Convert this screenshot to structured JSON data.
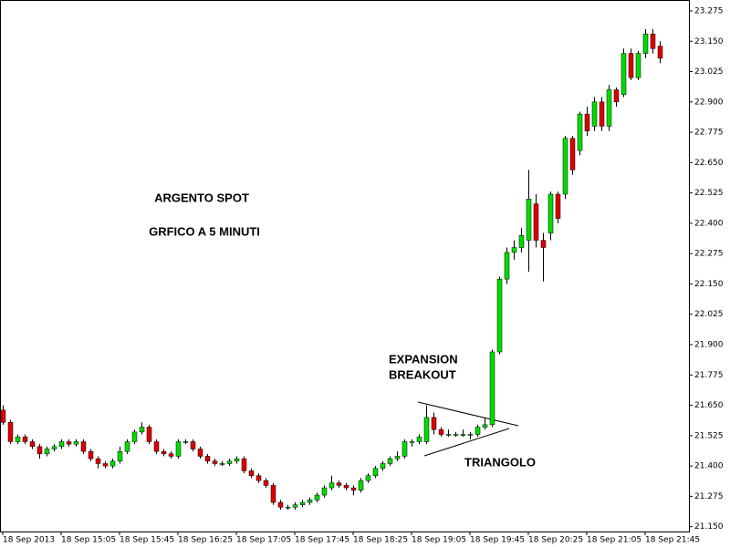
{
  "chart_data": {
    "type": "candlestick",
    "annotations": [
      "ARGENTO SPOT",
      "GRFICO A 5 MINUTI",
      "EXPANSION",
      "BREAKOUT",
      "TRIANGOLO"
    ],
    "categories": [
      "18 Sep 2013",
      null,
      null,
      null,
      null,
      null,
      null,
      null,
      "18 Sep 15:05",
      null,
      null,
      null,
      null,
      null,
      null,
      null,
      "18 Sep 15:45",
      null,
      null,
      null,
      null,
      null,
      null,
      null,
      "18 Sep 16:25",
      null,
      null,
      null,
      null,
      null,
      null,
      null,
      "18 Sep 17:05",
      null,
      null,
      null,
      null,
      null,
      null,
      null,
      "18 Sep 17:45",
      null,
      null,
      null,
      null,
      null,
      null,
      null,
      "18 Sep 18:25",
      null,
      null,
      null,
      null,
      null,
      null,
      null,
      "18 Sep 19:05",
      null,
      null,
      null,
      null,
      null,
      null,
      null,
      "18 Sep 19:45",
      null,
      null,
      null,
      null,
      null,
      null,
      null,
      "18 Sep 20:25",
      null,
      null,
      null,
      null,
      null,
      null,
      null,
      "18 Sep 21:05",
      null,
      null,
      null,
      null,
      null,
      null,
      null,
      "18 Sep 21:45",
      null,
      null
    ],
    "open": [
      21.63,
      21.58,
      21.5,
      21.52,
      21.5,
      21.48,
      21.45,
      21.47,
      21.48,
      21.5,
      21.49,
      21.5,
      21.46,
      21.43,
      21.41,
      21.4,
      21.42,
      21.46,
      21.5,
      21.54,
      21.56,
      21.5,
      21.46,
      21.45,
      21.44,
      21.5,
      21.5,
      21.47,
      21.44,
      21.42,
      21.41,
      21.41,
      21.42,
      21.43,
      21.38,
      21.36,
      21.34,
      21.32,
      21.25,
      21.23,
      21.23,
      21.24,
      21.25,
      21.26,
      21.28,
      21.31,
      21.33,
      21.32,
      21.31,
      21.3,
      21.34,
      21.36,
      21.39,
      21.41,
      21.43,
      21.44,
      21.5,
      21.5,
      21.5,
      21.6,
      21.55,
      21.53,
      21.53,
      21.53,
      21.53,
      21.53,
      21.56,
      21.57,
      21.87,
      22.17,
      22.28,
      22.3,
      22.33,
      22.48,
      22.33,
      22.36,
      22.52,
      22.52,
      22.75,
      22.7,
      22.85,
      22.8,
      22.9,
      22.8,
      22.95,
      22.93,
      23.1,
      23.0,
      23.1,
      23.18,
      23.13
    ],
    "high": [
      21.65,
      21.59,
      21.53,
      21.53,
      21.51,
      21.49,
      21.48,
      21.49,
      21.51,
      21.51,
      21.51,
      21.51,
      21.47,
      21.44,
      21.42,
      21.43,
      21.48,
      21.51,
      21.55,
      21.58,
      21.57,
      21.51,
      21.47,
      21.46,
      21.51,
      21.51,
      21.51,
      21.48,
      21.45,
      21.43,
      21.42,
      21.43,
      21.44,
      21.44,
      21.39,
      21.37,
      21.35,
      21.33,
      21.26,
      21.24,
      21.25,
      21.26,
      21.27,
      21.29,
      21.32,
      21.36,
      21.34,
      21.33,
      21.32,
      21.35,
      21.37,
      21.4,
      21.42,
      21.44,
      21.46,
      21.51,
      21.51,
      21.53,
      21.65,
      21.62,
      21.56,
      21.55,
      21.54,
      21.55,
      21.54,
      21.57,
      21.6,
      21.88,
      22.18,
      22.3,
      22.33,
      22.38,
      22.62,
      22.52,
      22.36,
      22.53,
      22.53,
      22.76,
      22.76,
      22.86,
      22.88,
      22.92,
      22.92,
      22.97,
      22.96,
      23.12,
      23.12,
      23.11,
      23.2,
      23.2,
      23.15
    ],
    "low": [
      21.57,
      21.49,
      21.49,
      21.49,
      21.47,
      21.43,
      21.44,
      21.46,
      21.47,
      21.48,
      21.48,
      21.45,
      21.42,
      21.39,
      21.39,
      21.39,
      21.41,
      21.45,
      21.49,
      21.53,
      21.49,
      21.45,
      21.44,
      21.43,
      21.43,
      21.49,
      21.46,
      21.43,
      21.41,
      21.4,
      21.4,
      21.4,
      21.41,
      21.37,
      21.35,
      21.33,
      21.31,
      21.24,
      21.22,
      21.22,
      21.22,
      21.23,
      21.24,
      21.25,
      21.27,
      21.3,
      21.31,
      21.3,
      21.28,
      21.29,
      21.33,
      21.35,
      21.38,
      21.4,
      21.42,
      21.43,
      21.48,
      21.49,
      21.49,
      21.53,
      21.52,
      21.52,
      21.52,
      21.52,
      21.51,
      21.52,
      21.55,
      21.56,
      21.86,
      22.15,
      22.25,
      22.28,
      22.2,
      22.3,
      22.16,
      22.33,
      22.4,
      22.5,
      22.6,
      22.68,
      22.76,
      22.78,
      22.78,
      22.78,
      22.88,
      22.92,
      22.99,
      22.99,
      23.08,
      23.1,
      23.06
    ],
    "close": [
      21.58,
      21.5,
      21.52,
      21.5,
      21.48,
      21.45,
      21.47,
      21.48,
      21.5,
      21.49,
      21.5,
      21.46,
      21.43,
      21.41,
      21.4,
      21.42,
      21.46,
      21.5,
      21.54,
      21.56,
      21.5,
      21.46,
      21.45,
      21.44,
      21.5,
      21.5,
      21.47,
      21.44,
      21.42,
      21.41,
      21.41,
      21.42,
      21.43,
      21.38,
      21.36,
      21.34,
      21.32,
      21.25,
      21.23,
      21.23,
      21.24,
      21.25,
      21.26,
      21.28,
      21.31,
      21.33,
      21.32,
      21.31,
      21.3,
      21.34,
      21.36,
      21.39,
      21.41,
      21.43,
      21.44,
      21.5,
      21.5,
      21.52,
      21.6,
      21.55,
      21.53,
      21.53,
      21.53,
      21.53,
      21.53,
      21.56,
      21.57,
      21.87,
      22.17,
      22.28,
      22.3,
      22.35,
      22.5,
      22.33,
      22.3,
      22.52,
      22.42,
      22.75,
      22.62,
      22.85,
      22.78,
      22.9,
      22.8,
      22.95,
      22.9,
      23.1,
      23.0,
      23.1,
      23.18,
      23.12,
      23.08
    ],
    "up_color": "#00dd00",
    "down_color": "#dd0000",
    "ylim": [
      21.13,
      23.32
    ],
    "yticks": [
      {
        "value": 21.15,
        "label": "21.150"
      },
      21.275,
      {
        "value": 21.4,
        "label": "21.400"
      },
      21.525,
      {
        "value": 21.65,
        "label": "21.650"
      },
      21.775,
      {
        "value": 21.9,
        "label": "21.900"
      },
      22.025,
      {
        "value": 22.15,
        "label": "22.150"
      },
      22.275,
      {
        "value": 22.4,
        "label": "22.400"
      },
      22.525,
      {
        "value": 22.65,
        "label": "22.650"
      },
      22.775,
      {
        "value": 22.9,
        "label": "22.900"
      },
      23.025,
      {
        "value": 23.15,
        "label": "23.150"
      },
      23.275
    ]
  }
}
